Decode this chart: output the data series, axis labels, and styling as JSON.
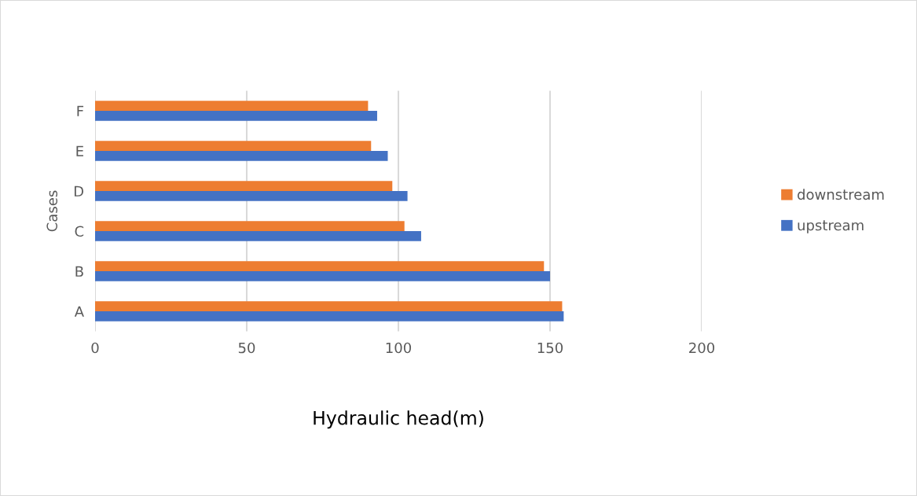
{
  "chart_data": {
    "type": "bar",
    "orientation": "horizontal",
    "xlabel": "Hydraulic head(m)",
    "ylabel": "Cases",
    "categories": [
      "F",
      "E",
      "D",
      "C",
      "B",
      "A"
    ],
    "series": [
      {
        "name": "downstream",
        "color": "#ed7d31",
        "values": [
          90,
          91,
          98,
          102,
          148,
          154
        ]
      },
      {
        "name": "upstream",
        "color": "#4472c4",
        "values": [
          93,
          96.5,
          103,
          107.5,
          150,
          154.5
        ]
      }
    ],
    "xlim": [
      0,
      200
    ],
    "xticks": [
      0,
      50,
      100,
      150,
      200
    ],
    "grid": "x",
    "legend": "right"
  }
}
